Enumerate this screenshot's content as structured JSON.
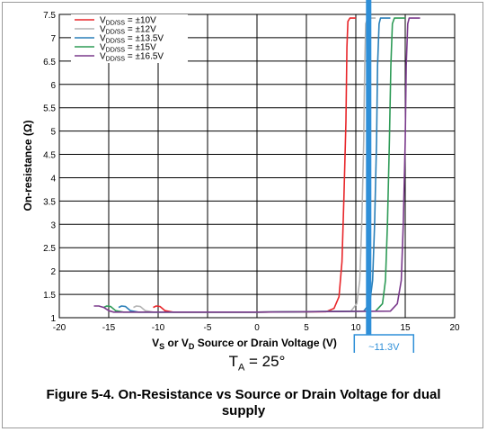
{
  "chart_data": {
    "type": "line",
    "xlabel_parts": [
      "V",
      "S",
      " or V",
      "D",
      " Source or Drain Voltage (V)"
    ],
    "ylabel": "On-resistance (Ω)",
    "xlim": [
      -20,
      20
    ],
    "ylim": [
      1,
      7.5
    ],
    "x_ticks": [
      -20,
      -15,
      -10,
      -5,
      0,
      5,
      10,
      15,
      20
    ],
    "y_ticks": [
      1,
      1.5,
      2,
      2.5,
      3,
      3.5,
      4,
      4.5,
      5,
      5.5,
      6,
      6.5,
      7,
      7.5
    ],
    "grid": true,
    "legend_position": "top-left",
    "series": [
      {
        "name": "VDD/SS = ±10V",
        "legend_main": "V",
        "legend_sub": "DD/SS",
        "legend_rest": " = ±10V",
        "color": "#e8262a",
        "x": [
          -10.5,
          -10.2,
          -9.8,
          -9.3,
          -8.5,
          0,
          7.0,
          7.8,
          8.3,
          8.6,
          8.8,
          9.0,
          9.1,
          9.2,
          9.4,
          9.6,
          10.0
        ],
        "y": [
          1.22,
          1.25,
          1.24,
          1.15,
          1.12,
          1.12,
          1.13,
          1.2,
          1.45,
          2.2,
          3.6,
          5.2,
          6.8,
          7.35,
          7.42,
          7.42,
          7.42
        ]
      },
      {
        "name": "VDD/SS = ±12V",
        "legend_main": "V",
        "legend_sub": "DD/SS",
        "legend_rest": " = ±12V",
        "color": "#b3b3b3",
        "x": [
          -12.5,
          -12.2,
          -11.8,
          -11.3,
          -10.5,
          0,
          9.5,
          10.1,
          10.4,
          10.6,
          10.8,
          10.9,
          11.0,
          11.2,
          11.5,
          12.0
        ],
        "y": [
          1.22,
          1.25,
          1.24,
          1.15,
          1.12,
          1.12,
          1.14,
          1.3,
          1.8,
          3.0,
          4.8,
          6.4,
          7.3,
          7.42,
          7.42,
          7.42
        ]
      },
      {
        "name": "VDD/SS = ±13.5V",
        "legend_main": "V",
        "legend_sub": "DD/SS",
        "legend_rest": " = ±13.5V",
        "color": "#2a7fb8",
        "x": [
          -14.0,
          -13.7,
          -13.3,
          -12.8,
          -12.0,
          0,
          10.8,
          11.4,
          11.7,
          11.9,
          12.1,
          12.2,
          12.35,
          12.5,
          12.8,
          13.5
        ],
        "y": [
          1.22,
          1.25,
          1.24,
          1.15,
          1.12,
          1.12,
          1.14,
          1.3,
          1.8,
          3.0,
          4.8,
          6.4,
          7.3,
          7.42,
          7.42,
          7.42
        ]
      },
      {
        "name": "VDD/SS = ±15V",
        "legend_main": "V",
        "legend_sub": "DD/SS",
        "legend_rest": " = ±15V",
        "color": "#2e9b57",
        "x": [
          -15.5,
          -15.2,
          -14.8,
          -14.3,
          -13.5,
          0,
          12.0,
          12.7,
          13.0,
          13.2,
          13.4,
          13.55,
          13.7,
          13.9,
          14.3,
          15.0
        ],
        "y": [
          1.22,
          1.25,
          1.24,
          1.15,
          1.12,
          1.12,
          1.14,
          1.3,
          1.8,
          3.0,
          4.8,
          6.4,
          7.3,
          7.42,
          7.42,
          7.42
        ]
      },
      {
        "name": "VDD/SS = ±16.5V",
        "legend_main": "V",
        "legend_sub": "DD/SS",
        "legend_rest": " = ±16.5V",
        "color": "#7a3a8c",
        "x": [
          -16.5,
          -16.0,
          -15.5,
          -15.0,
          -14.5,
          0,
          13.5,
          14.2,
          14.6,
          14.8,
          15.0,
          15.1,
          15.25,
          15.4,
          15.8,
          16.5
        ],
        "y": [
          1.25,
          1.25,
          1.22,
          1.15,
          1.12,
          1.12,
          1.14,
          1.3,
          1.8,
          3.0,
          4.8,
          6.4,
          7.3,
          7.42,
          7.42,
          7.42
        ]
      }
    ],
    "annotation": {
      "x": 11.3,
      "label": "~11.3V",
      "color": "#2e8fd8"
    }
  },
  "conditions": {
    "t_main": "T",
    "t_sub": "A",
    "t_rest": " = 25°"
  },
  "caption": "Figure 5-4. On-Resistance vs Source or Drain Voltage for dual supply"
}
